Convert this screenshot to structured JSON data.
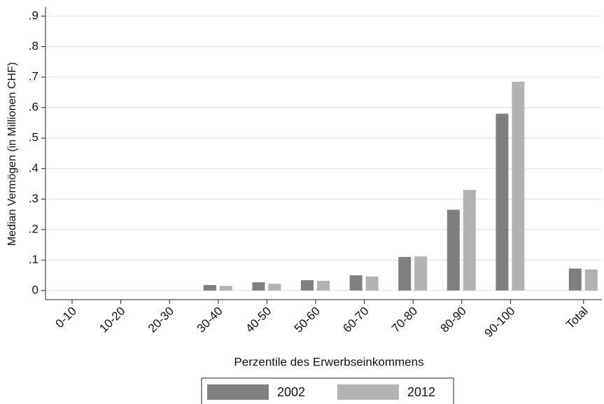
{
  "chart_data": {
    "type": "bar",
    "xlabel": "Perzentile des Erwerbseinkommens",
    "ylabel": "Median Vermögen (in Millionen CHF)",
    "categories": [
      "0-10",
      "10-20",
      "20-30",
      "30-40",
      "40-50",
      "50-60",
      "60-70",
      "70-80",
      "80-90",
      "90-100",
      "Total"
    ],
    "series": [
      {
        "name": "2002",
        "color": "#7f7f7f",
        "values": [
          0,
          0,
          0,
          0.018,
          0.027,
          0.034,
          0.05,
          0.11,
          0.265,
          0.58,
          0.072
        ]
      },
      {
        "name": "2012",
        "color": "#b2b2b2",
        "values": [
          0,
          0,
          0,
          0.015,
          0.022,
          0.032,
          0.046,
          0.112,
          0.33,
          0.685,
          0.069
        ]
      }
    ],
    "ylim": [
      -0.03,
      0.93
    ],
    "yticks": [
      0,
      {
        "value": 0.1,
        "label": ".1"
      },
      {
        "value": 0.2,
        "label": ".2"
      },
      {
        "value": 0.3,
        "label": ".3"
      },
      {
        "value": 0.4,
        "label": ".4"
      },
      {
        "value": 0.5,
        "label": ".5"
      },
      {
        "value": 0.6,
        "label": ".6"
      },
      {
        "value": 0.7,
        "label": ".7"
      },
      {
        "value": 0.8,
        "label": ".8"
      },
      {
        "value": 0.9,
        "label": ".9"
      }
    ],
    "grid": true,
    "legend": "bottom"
  }
}
